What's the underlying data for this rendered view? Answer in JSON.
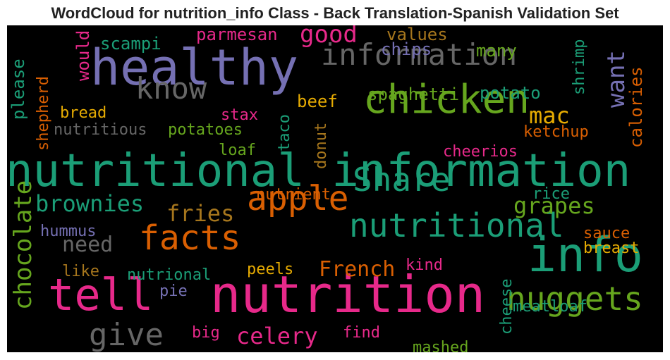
{
  "title": "WordCloud for nutrition_info Class - Back Translation-Spanish Validation Set",
  "chart_data": {
    "type": "wordcloud",
    "title": "WordCloud for nutrition_info Class - Back Translation-Spanish Validation Set",
    "background": "#000000",
    "colormap": [
      "#1b9e77",
      "#d95f02",
      "#7570b3",
      "#e7298a",
      "#66a61e",
      "#e6ab02",
      "#a6761d",
      "#666666"
    ],
    "words": [
      {
        "text": "nutritional information",
        "color": "#1b9e77"
      },
      {
        "text": "healthy",
        "color": "#7570b3"
      },
      {
        "text": "nutrition",
        "color": "#e7298a"
      },
      {
        "text": "chicken",
        "color": "#66a61e"
      },
      {
        "text": "info",
        "color": "#1b9e77"
      },
      {
        "text": "tell",
        "color": "#e7298a"
      },
      {
        "text": "information",
        "color": "#666666"
      },
      {
        "text": "nutritional",
        "color": "#1b9e77"
      },
      {
        "text": "apple",
        "color": "#d95f02"
      },
      {
        "text": "facts",
        "color": "#d95f02"
      },
      {
        "text": "Share",
        "color": "#1b9e77"
      },
      {
        "text": "know",
        "color": "#666666"
      },
      {
        "text": "nuggets",
        "color": "#66a61e"
      },
      {
        "text": "give",
        "color": "#666666"
      },
      {
        "text": "chocolate",
        "color": "#66a61e"
      },
      {
        "text": "good",
        "color": "#e7298a"
      },
      {
        "text": "want",
        "color": "#7570b3"
      },
      {
        "text": "mac",
        "color": "#e6ab02"
      },
      {
        "text": "brownies",
        "color": "#1b9e77"
      },
      {
        "text": "fries",
        "color": "#a6761d"
      },
      {
        "text": "grapes",
        "color": "#66a61e"
      },
      {
        "text": "celery",
        "color": "#e7298a"
      },
      {
        "text": "French",
        "color": "#d95f02"
      },
      {
        "text": "need",
        "color": "#666666"
      },
      {
        "text": "parmesan",
        "color": "#e7298a"
      },
      {
        "text": "scampi",
        "color": "#1b9e77"
      },
      {
        "text": "values",
        "color": "#a6761d"
      },
      {
        "text": "chips",
        "color": "#7570b3"
      },
      {
        "text": "many",
        "color": "#66a61e"
      },
      {
        "text": "would",
        "color": "#e7298a"
      },
      {
        "text": "please",
        "color": "#1b9e77"
      },
      {
        "text": "shepherd",
        "color": "#d95f02"
      },
      {
        "text": "shrimp",
        "color": "#1b9e77"
      },
      {
        "text": "calories",
        "color": "#d95f02"
      },
      {
        "text": "spaghetti",
        "color": "#66a61e"
      },
      {
        "text": "potato",
        "color": "#1b9e77"
      },
      {
        "text": "beef",
        "color": "#e6ab02"
      },
      {
        "text": "bread",
        "color": "#e6ab02"
      },
      {
        "text": "stax",
        "color": "#e7298a"
      },
      {
        "text": "nutritious",
        "color": "#666666"
      },
      {
        "text": "potatoes",
        "color": "#66a61e"
      },
      {
        "text": "taco",
        "color": "#1b9e77"
      },
      {
        "text": "ketchup",
        "color": "#d95f02"
      },
      {
        "text": "loaf",
        "color": "#66a61e"
      },
      {
        "text": "donut",
        "color": "#a6761d"
      },
      {
        "text": "cheerios",
        "color": "#e7298a"
      },
      {
        "text": "nutrient",
        "color": "#d95f02"
      },
      {
        "text": "rice",
        "color": "#1b9e77"
      },
      {
        "text": "hummus",
        "color": "#7570b3"
      },
      {
        "text": "sauce",
        "color": "#d95f02"
      },
      {
        "text": "breast",
        "color": "#e6ab02"
      },
      {
        "text": "like",
        "color": "#a6761d"
      },
      {
        "text": "nutrional",
        "color": "#1b9e77"
      },
      {
        "text": "peels",
        "color": "#e6ab02"
      },
      {
        "text": "kind",
        "color": "#e7298a"
      },
      {
        "text": "pie",
        "color": "#7570b3"
      },
      {
        "text": "cheese",
        "color": "#1b9e77"
      },
      {
        "text": "meatloaf",
        "color": "#1b9e77"
      },
      {
        "text": "big",
        "color": "#e7298a"
      },
      {
        "text": "find",
        "color": "#e7298a"
      },
      {
        "text": "mashed",
        "color": "#66a61e"
      }
    ]
  }
}
